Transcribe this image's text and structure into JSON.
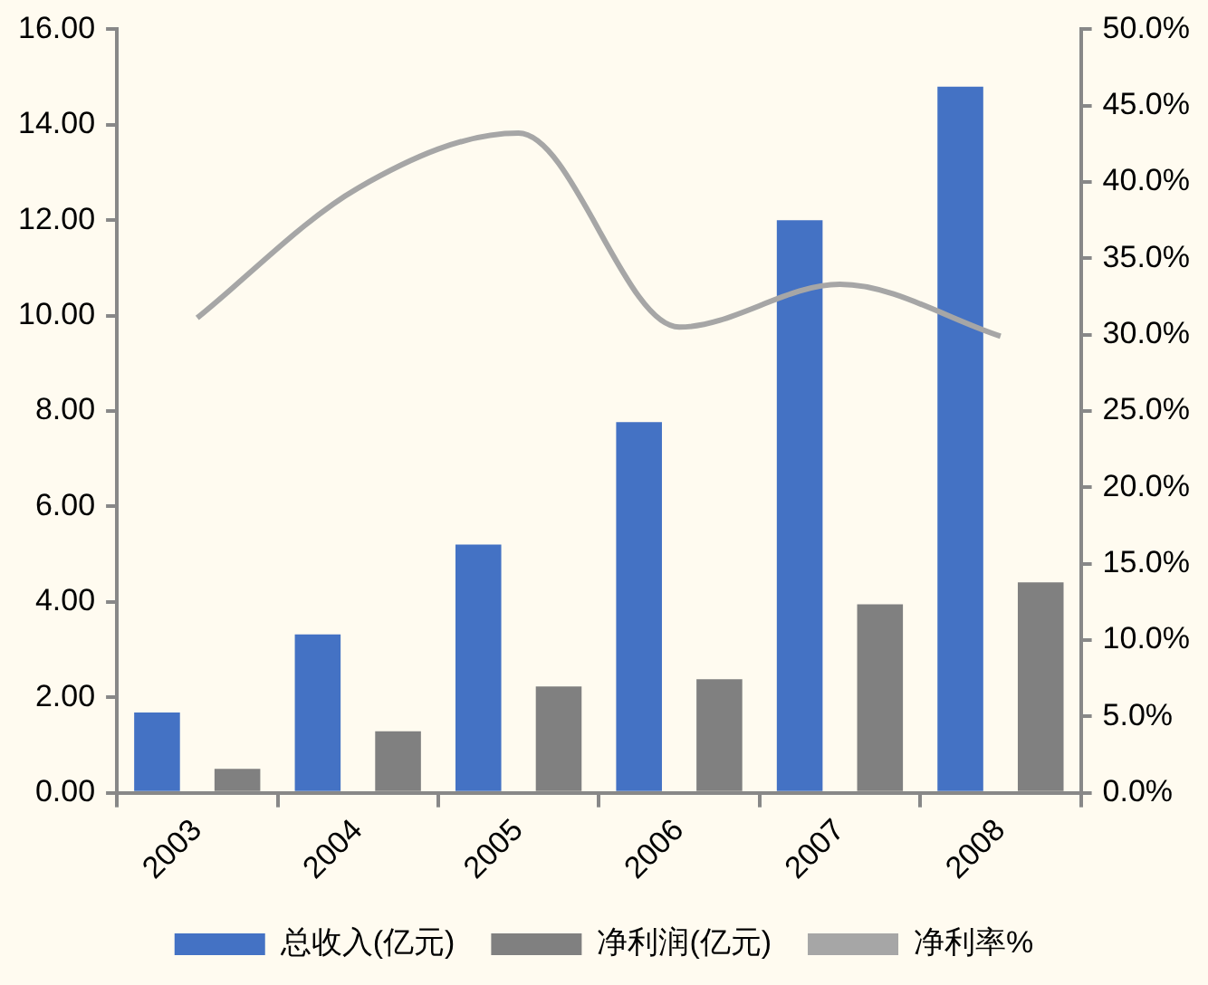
{
  "chart_data": {
    "type": "bar",
    "categories": [
      "2003",
      "2004",
      "2005",
      "2006",
      "2007",
      "2008"
    ],
    "series": [
      {
        "name": "总收入(亿元)",
        "color": "#4472c4",
        "values": [
          1.68,
          3.32,
          5.2,
          7.77,
          12.0,
          14.8
        ]
      },
      {
        "name": "净利润(亿元)",
        "color": "#808080",
        "values": [
          0.5,
          1.29,
          2.23,
          2.38,
          3.95,
          4.41
        ]
      },
      {
        "name": "净利率%",
        "type": "line",
        "axis": "y2",
        "color": "#a6a6a6",
        "values": [
          31.1,
          39.6,
          43.2,
          30.5,
          33.3,
          29.9
        ]
      }
    ],
    "ylim": [
      0,
      16
    ],
    "yticks": [
      {
        "value": 0,
        "label": "0.00"
      },
      {
        "value": 2,
        "label": "2.00"
      },
      {
        "value": 4,
        "label": "4.00"
      },
      {
        "value": 6,
        "label": "6.00"
      },
      {
        "value": 8,
        "label": "8.00"
      },
      {
        "value": 10,
        "label": "10.00"
      },
      {
        "value": 12,
        "label": "12.00"
      },
      {
        "value": 14,
        "label": "14.00"
      },
      {
        "value": 16,
        "label": "16.00"
      }
    ],
    "y2lim": [
      0,
      50
    ],
    "y2ticks": [
      {
        "value": 0,
        "label": "0.0%"
      },
      {
        "value": 5,
        "label": "5.0%"
      },
      {
        "value": 10,
        "label": "10.0%"
      },
      {
        "value": 15,
        "label": "15.0%"
      },
      {
        "value": 20,
        "label": "20.0%"
      },
      {
        "value": 25,
        "label": "25.0%"
      },
      {
        "value": 30,
        "label": "30.0%"
      },
      {
        "value": 35,
        "label": "35.0%"
      },
      {
        "value": 40,
        "label": "40.0%"
      },
      {
        "value": 45,
        "label": "45.0%"
      },
      {
        "value": 50,
        "label": "50.0%"
      }
    ],
    "grid": false,
    "legend": "bottom",
    "marker": "none"
  }
}
